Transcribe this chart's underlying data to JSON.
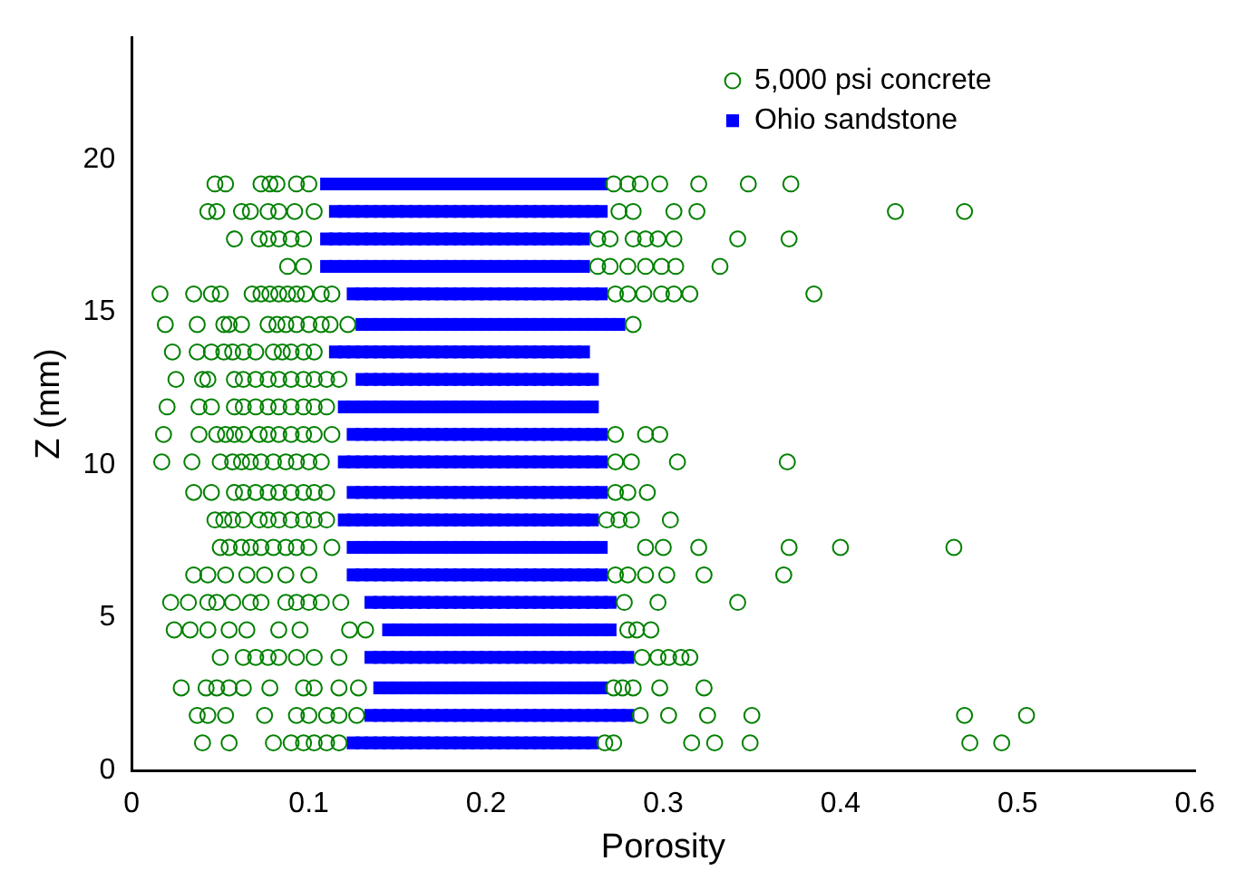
{
  "chart_data": {
    "type": "scatter",
    "xlabel": "Porosity",
    "ylabel": "Z (mm)",
    "xlim": [
      0,
      0.6
    ],
    "xticks": [
      0,
      0.1,
      0.2,
      0.3,
      0.4,
      0.5,
      0.6
    ],
    "ylim": [
      0,
      24
    ],
    "yticks": [
      0,
      5,
      10,
      15,
      20
    ],
    "legend": "top right",
    "series": [
      {
        "name": "5,000 psi concrete",
        "color": "#008000",
        "marker": "circle",
        "x": [
          0.047,
          0.053,
          0.073,
          0.078,
          0.082,
          0.093,
          0.1,
          0.272,
          0.28,
          0.287,
          0.298,
          0.32,
          0.348,
          0.372,
          0.043,
          0.048,
          0.062,
          0.067,
          0.077,
          0.083,
          0.092,
          0.103,
          0.275,
          0.283,
          0.306,
          0.319,
          0.431,
          0.47,
          0.058,
          0.072,
          0.077,
          0.083,
          0.09,
          0.097,
          0.263,
          0.27,
          0.283,
          0.29,
          0.297,
          0.306,
          0.342,
          0.371,
          0.088,
          0.097,
          0.263,
          0.27,
          0.28,
          0.29,
          0.299,
          0.307,
          0.332,
          0.016,
          0.035,
          0.045,
          0.05,
          0.068,
          0.073,
          0.078,
          0.083,
          0.088,
          0.093,
          0.098,
          0.107,
          0.113,
          0.273,
          0.28,
          0.289,
          0.299,
          0.306,
          0.315,
          0.385,
          0.019,
          0.037,
          0.052,
          0.055,
          0.062,
          0.077,
          0.082,
          0.087,
          0.093,
          0.1,
          0.107,
          0.112,
          0.122,
          0.283,
          0.023,
          0.037,
          0.045,
          0.052,
          0.057,
          0.063,
          0.07,
          0.08,
          0.085,
          0.09,
          0.097,
          0.103,
          0.025,
          0.04,
          0.043,
          0.058,
          0.063,
          0.07,
          0.077,
          0.083,
          0.09,
          0.097,
          0.103,
          0.11,
          0.117,
          0.02,
          0.038,
          0.045,
          0.058,
          0.063,
          0.07,
          0.077,
          0.083,
          0.09,
          0.097,
          0.103,
          0.11,
          0.018,
          0.038,
          0.048,
          0.053,
          0.058,
          0.063,
          0.072,
          0.077,
          0.083,
          0.09,
          0.097,
          0.103,
          0.113,
          0.273,
          0.29,
          0.298,
          0.017,
          0.034,
          0.05,
          0.057,
          0.062,
          0.067,
          0.073,
          0.08,
          0.087,
          0.093,
          0.1,
          0.107,
          0.273,
          0.282,
          0.308,
          0.37,
          0.035,
          0.045,
          0.058,
          0.063,
          0.07,
          0.077,
          0.083,
          0.09,
          0.097,
          0.103,
          0.11,
          0.273,
          0.28,
          0.291,
          0.047,
          0.052,
          0.057,
          0.063,
          0.072,
          0.077,
          0.083,
          0.09,
          0.097,
          0.103,
          0.11,
          0.268,
          0.275,
          0.282,
          0.304,
          0.05,
          0.055,
          0.062,
          0.067,
          0.073,
          0.08,
          0.087,
          0.093,
          0.1,
          0.113,
          0.29,
          0.3,
          0.32,
          0.371,
          0.4,
          0.464,
          0.035,
          0.043,
          0.053,
          0.065,
          0.075,
          0.087,
          0.1,
          0.273,
          0.28,
          0.29,
          0.302,
          0.323,
          0.368,
          0.022,
          0.032,
          0.043,
          0.048,
          0.057,
          0.067,
          0.073,
          0.087,
          0.093,
          0.1,
          0.107,
          0.118,
          0.278,
          0.297,
          0.342,
          0.024,
          0.033,
          0.043,
          0.055,
          0.065,
          0.083,
          0.095,
          0.123,
          0.132,
          0.28,
          0.285,
          0.293,
          0.05,
          0.063,
          0.07,
          0.077,
          0.083,
          0.093,
          0.103,
          0.117,
          0.288,
          0.297,
          0.303,
          0.31,
          0.315,
          0.028,
          0.042,
          0.048,
          0.055,
          0.063,
          0.078,
          0.097,
          0.103,
          0.117,
          0.128,
          0.272,
          0.277,
          0.283,
          0.298,
          0.323,
          0.037,
          0.043,
          0.053,
          0.075,
          0.093,
          0.1,
          0.11,
          0.117,
          0.127,
          0.287,
          0.303,
          0.325,
          0.35,
          0.47,
          0.505,
          0.04,
          0.055,
          0.08,
          0.09,
          0.097,
          0.103,
          0.11,
          0.117,
          0.267,
          0.272,
          0.316,
          0.329,
          0.349,
          0.473,
          0.491
        ],
        "values": [
          19.2,
          19.2,
          19.2,
          19.2,
          19.2,
          19.2,
          19.2,
          19.2,
          19.2,
          19.2,
          19.2,
          19.2,
          19.2,
          19.2,
          18.3,
          18.3,
          18.3,
          18.3,
          18.3,
          18.3,
          18.3,
          18.3,
          18.3,
          18.3,
          18.3,
          18.3,
          18.3,
          18.3,
          17.4,
          17.4,
          17.4,
          17.4,
          17.4,
          17.4,
          17.4,
          17.4,
          17.4,
          17.4,
          17.4,
          17.4,
          17.4,
          17.4,
          16.5,
          16.5,
          16.5,
          16.5,
          16.5,
          16.5,
          16.5,
          16.5,
          16.5,
          15.6,
          15.6,
          15.6,
          15.6,
          15.6,
          15.6,
          15.6,
          15.6,
          15.6,
          15.6,
          15.6,
          15.6,
          15.6,
          15.6,
          15.6,
          15.6,
          15.6,
          15.6,
          15.6,
          15.6,
          14.6,
          14.6,
          14.6,
          14.6,
          14.6,
          14.6,
          14.6,
          14.6,
          14.6,
          14.6,
          14.6,
          14.6,
          14.6,
          14.6,
          13.7,
          13.7,
          13.7,
          13.7,
          13.7,
          13.7,
          13.7,
          13.7,
          13.7,
          13.7,
          13.7,
          13.7,
          12.8,
          12.8,
          12.8,
          12.8,
          12.8,
          12.8,
          12.8,
          12.8,
          12.8,
          12.8,
          12.8,
          12.8,
          12.8,
          11.9,
          11.9,
          11.9,
          11.9,
          11.9,
          11.9,
          11.9,
          11.9,
          11.9,
          11.9,
          11.9,
          11.9,
          11,
          11,
          11,
          11,
          11,
          11,
          11,
          11,
          11,
          11,
          11,
          11,
          11,
          11,
          11,
          11,
          10.1,
          10.1,
          10.1,
          10.1,
          10.1,
          10.1,
          10.1,
          10.1,
          10.1,
          10.1,
          10.1,
          10.1,
          10.1,
          10.1,
          10.1,
          10.1,
          9.1,
          9.1,
          9.1,
          9.1,
          9.1,
          9.1,
          9.1,
          9.1,
          9.1,
          9.1,
          9.1,
          9.1,
          9.1,
          9.1,
          8.2,
          8.2,
          8.2,
          8.2,
          8.2,
          8.2,
          8.2,
          8.2,
          8.2,
          8.2,
          8.2,
          8.2,
          8.2,
          8.2,
          8.2,
          7.3,
          7.3,
          7.3,
          7.3,
          7.3,
          7.3,
          7.3,
          7.3,
          7.3,
          7.3,
          7.3,
          7.3,
          7.3,
          7.3,
          7.3,
          7.3,
          6.4,
          6.4,
          6.4,
          6.4,
          6.4,
          6.4,
          6.4,
          6.4,
          6.4,
          6.4,
          6.4,
          6.4,
          6.4,
          5.5,
          5.5,
          5.5,
          5.5,
          5.5,
          5.5,
          5.5,
          5.5,
          5.5,
          5.5,
          5.5,
          5.5,
          5.5,
          5.5,
          5.5,
          4.6,
          4.6,
          4.6,
          4.6,
          4.6,
          4.6,
          4.6,
          4.6,
          4.6,
          4.6,
          4.6,
          4.6,
          3.7,
          3.7,
          3.7,
          3.7,
          3.7,
          3.7,
          3.7,
          3.7,
          3.7,
          3.7,
          3.7,
          3.7,
          3.7,
          2.7,
          2.7,
          2.7,
          2.7,
          2.7,
          2.7,
          2.7,
          2.7,
          2.7,
          2.7,
          2.7,
          2.7,
          2.7,
          2.7,
          2.7,
          1.8,
          1.8,
          1.8,
          1.8,
          1.8,
          1.8,
          1.8,
          1.8,
          1.8,
          1.8,
          1.8,
          1.8,
          1.8,
          1.8,
          1.8,
          0.9,
          0.9,
          0.9,
          0.9,
          0.9,
          0.9,
          0.9,
          0.9,
          0.9,
          0.9,
          0.9,
          0.9,
          0.9,
          0.9,
          0.9
        ]
      },
      {
        "name": "Ohio sandstone",
        "color": "#0000ff",
        "marker": "square",
        "x": [
          0.11,
          0.115,
          0.12,
          0.125,
          0.13,
          0.135,
          0.14,
          0.145,
          0.15,
          0.155,
          0.16,
          0.165,
          0.17,
          0.175,
          0.18,
          0.185,
          0.19,
          0.195,
          0.2,
          0.205,
          0.21,
          0.215,
          0.22,
          0.225,
          0.23,
          0.235,
          0.24,
          0.245,
          0.25,
          0.255,
          0.26,
          0.265,
          0.115,
          0.12,
          0.125,
          0.13,
          0.135,
          0.14,
          0.145,
          0.15,
          0.155,
          0.16,
          0.165,
          0.17,
          0.175,
          0.18,
          0.185,
          0.19,
          0.195,
          0.2,
          0.205,
          0.21,
          0.215,
          0.22,
          0.225,
          0.23,
          0.235,
          0.24,
          0.245,
          0.25,
          0.255,
          0.26,
          0.265,
          0.11,
          0.115,
          0.12,
          0.125,
          0.13,
          0.135,
          0.14,
          0.145,
          0.15,
          0.155,
          0.16,
          0.165,
          0.17,
          0.175,
          0.18,
          0.185,
          0.19,
          0.195,
          0.2,
          0.205,
          0.21,
          0.215,
          0.22,
          0.225,
          0.23,
          0.235,
          0.24,
          0.245,
          0.25,
          0.255,
          0.11,
          0.115,
          0.12,
          0.125,
          0.13,
          0.135,
          0.14,
          0.145,
          0.15,
          0.155,
          0.16,
          0.165,
          0.17,
          0.175,
          0.18,
          0.185,
          0.19,
          0.195,
          0.2,
          0.205,
          0.21,
          0.215,
          0.22,
          0.225,
          0.23,
          0.235,
          0.24,
          0.245,
          0.25,
          0.255,
          0.125,
          0.13,
          0.135,
          0.14,
          0.145,
          0.15,
          0.155,
          0.16,
          0.165,
          0.17,
          0.175,
          0.18,
          0.185,
          0.19,
          0.195,
          0.2,
          0.205,
          0.21,
          0.215,
          0.22,
          0.225,
          0.23,
          0.235,
          0.24,
          0.245,
          0.25,
          0.255,
          0.26,
          0.265,
          0.13,
          0.135,
          0.14,
          0.145,
          0.15,
          0.155,
          0.16,
          0.165,
          0.17,
          0.175,
          0.18,
          0.185,
          0.19,
          0.195,
          0.2,
          0.205,
          0.21,
          0.215,
          0.22,
          0.225,
          0.23,
          0.235,
          0.24,
          0.245,
          0.25,
          0.255,
          0.26,
          0.265,
          0.27,
          0.275,
          0.115,
          0.12,
          0.125,
          0.13,
          0.135,
          0.14,
          0.145,
          0.15,
          0.155,
          0.16,
          0.165,
          0.17,
          0.175,
          0.18,
          0.185,
          0.19,
          0.195,
          0.2,
          0.205,
          0.21,
          0.215,
          0.22,
          0.225,
          0.23,
          0.235,
          0.24,
          0.245,
          0.25,
          0.255,
          0.13,
          0.135,
          0.14,
          0.145,
          0.15,
          0.155,
          0.16,
          0.165,
          0.17,
          0.175,
          0.18,
          0.185,
          0.19,
          0.195,
          0.2,
          0.205,
          0.21,
          0.215,
          0.22,
          0.225,
          0.23,
          0.235,
          0.24,
          0.245,
          0.25,
          0.255,
          0.26,
          0.12,
          0.125,
          0.13,
          0.135,
          0.14,
          0.145,
          0.15,
          0.155,
          0.16,
          0.165,
          0.17,
          0.175,
          0.18,
          0.185,
          0.19,
          0.195,
          0.2,
          0.205,
          0.21,
          0.215,
          0.22,
          0.225,
          0.23,
          0.235,
          0.24,
          0.245,
          0.25,
          0.255,
          0.26,
          0.125,
          0.13,
          0.135,
          0.14,
          0.145,
          0.15,
          0.155,
          0.16,
          0.165,
          0.17,
          0.175,
          0.18,
          0.185,
          0.19,
          0.195,
          0.2,
          0.205,
          0.21,
          0.215,
          0.22,
          0.225,
          0.23,
          0.235,
          0.24,
          0.245,
          0.25,
          0.255,
          0.26,
          0.265,
          0.12,
          0.125,
          0.13,
          0.135,
          0.14,
          0.145,
          0.15,
          0.155,
          0.16,
          0.165,
          0.17,
          0.175,
          0.18,
          0.185,
          0.19,
          0.195,
          0.2,
          0.205,
          0.21,
          0.215,
          0.22,
          0.225,
          0.23,
          0.235,
          0.24,
          0.245,
          0.25,
          0.255,
          0.26,
          0.265,
          0.125,
          0.13,
          0.135,
          0.14,
          0.145,
          0.15,
          0.155,
          0.16,
          0.165,
          0.17,
          0.175,
          0.18,
          0.185,
          0.19,
          0.195,
          0.2,
          0.205,
          0.21,
          0.215,
          0.22,
          0.225,
          0.23,
          0.235,
          0.24,
          0.245,
          0.25,
          0.255,
          0.26,
          0.265,
          0.12,
          0.125,
          0.13,
          0.135,
          0.14,
          0.145,
          0.15,
          0.155,
          0.16,
          0.165,
          0.17,
          0.175,
          0.18,
          0.185,
          0.19,
          0.195,
          0.2,
          0.205,
          0.21,
          0.215,
          0.22,
          0.225,
          0.23,
          0.235,
          0.24,
          0.245,
          0.25,
          0.255,
          0.26,
          0.125,
          0.13,
          0.135,
          0.14,
          0.145,
          0.15,
          0.155,
          0.16,
          0.165,
          0.17,
          0.175,
          0.18,
          0.185,
          0.19,
          0.195,
          0.2,
          0.205,
          0.21,
          0.215,
          0.22,
          0.225,
          0.23,
          0.235,
          0.24,
          0.245,
          0.25,
          0.255,
          0.26,
          0.265,
          0.125,
          0.13,
          0.135,
          0.14,
          0.145,
          0.15,
          0.155,
          0.16,
          0.165,
          0.17,
          0.175,
          0.18,
          0.185,
          0.19,
          0.195,
          0.2,
          0.205,
          0.21,
          0.215,
          0.22,
          0.225,
          0.23,
          0.235,
          0.24,
          0.245,
          0.25,
          0.255,
          0.26,
          0.265,
          0.135,
          0.14,
          0.145,
          0.15,
          0.155,
          0.16,
          0.165,
          0.17,
          0.175,
          0.18,
          0.185,
          0.19,
          0.195,
          0.2,
          0.205,
          0.21,
          0.215,
          0.22,
          0.225,
          0.23,
          0.235,
          0.24,
          0.245,
          0.25,
          0.255,
          0.26,
          0.265,
          0.27,
          0.145,
          0.15,
          0.155,
          0.16,
          0.165,
          0.17,
          0.175,
          0.18,
          0.185,
          0.19,
          0.195,
          0.2,
          0.205,
          0.21,
          0.215,
          0.22,
          0.225,
          0.23,
          0.235,
          0.24,
          0.245,
          0.25,
          0.255,
          0.26,
          0.265,
          0.27,
          0.135,
          0.14,
          0.145,
          0.15,
          0.155,
          0.16,
          0.165,
          0.17,
          0.175,
          0.18,
          0.185,
          0.19,
          0.195,
          0.2,
          0.205,
          0.21,
          0.215,
          0.22,
          0.225,
          0.23,
          0.235,
          0.24,
          0.245,
          0.25,
          0.255,
          0.26,
          0.265,
          0.27,
          0.275,
          0.28,
          0.14,
          0.145,
          0.15,
          0.155,
          0.16,
          0.165,
          0.17,
          0.175,
          0.18,
          0.185,
          0.19,
          0.195,
          0.2,
          0.205,
          0.21,
          0.215,
          0.22,
          0.225,
          0.23,
          0.235,
          0.24,
          0.245,
          0.25,
          0.255,
          0.26,
          0.265,
          0.135,
          0.14,
          0.145,
          0.15,
          0.155,
          0.16,
          0.165,
          0.17,
          0.175,
          0.18,
          0.185,
          0.19,
          0.195,
          0.2,
          0.205,
          0.21,
          0.215,
          0.22,
          0.225,
          0.23,
          0.235,
          0.24,
          0.245,
          0.25,
          0.255,
          0.26,
          0.265,
          0.27,
          0.275,
          0.28,
          0.125,
          0.13,
          0.135,
          0.14,
          0.145,
          0.15,
          0.155,
          0.16,
          0.165,
          0.17,
          0.175,
          0.18,
          0.185,
          0.19,
          0.195,
          0.2,
          0.205,
          0.21,
          0.215,
          0.22,
          0.225,
          0.23,
          0.235,
          0.24,
          0.245,
          0.25,
          0.255,
          0.26
        ],
        "values": [
          19.2,
          19.2,
          19.2,
          19.2,
          19.2,
          19.2,
          19.2,
          19.2,
          19.2,
          19.2,
          19.2,
          19.2,
          19.2,
          19.2,
          19.2,
          19.2,
          19.2,
          19.2,
          19.2,
          19.2,
          19.2,
          19.2,
          19.2,
          19.2,
          19.2,
          19.2,
          19.2,
          19.2,
          19.2,
          19.2,
          19.2,
          19.2,
          18.3,
          18.3,
          18.3,
          18.3,
          18.3,
          18.3,
          18.3,
          18.3,
          18.3,
          18.3,
          18.3,
          18.3,
          18.3,
          18.3,
          18.3,
          18.3,
          18.3,
          18.3,
          18.3,
          18.3,
          18.3,
          18.3,
          18.3,
          18.3,
          18.3,
          18.3,
          18.3,
          18.3,
          18.3,
          18.3,
          18.3,
          17.4,
          17.4,
          17.4,
          17.4,
          17.4,
          17.4,
          17.4,
          17.4,
          17.4,
          17.4,
          17.4,
          17.4,
          17.4,
          17.4,
          17.4,
          17.4,
          17.4,
          17.4,
          17.4,
          17.4,
          17.4,
          17.4,
          17.4,
          17.4,
          17.4,
          17.4,
          17.4,
          17.4,
          17.4,
          17.4,
          16.5,
          16.5,
          16.5,
          16.5,
          16.5,
          16.5,
          16.5,
          16.5,
          16.5,
          16.5,
          16.5,
          16.5,
          16.5,
          16.5,
          16.5,
          16.5,
          16.5,
          16.5,
          16.5,
          16.5,
          16.5,
          16.5,
          16.5,
          16.5,
          16.5,
          16.5,
          16.5,
          16.5,
          16.5,
          16.5,
          15.6,
          15.6,
          15.6,
          15.6,
          15.6,
          15.6,
          15.6,
          15.6,
          15.6,
          15.6,
          15.6,
          15.6,
          15.6,
          15.6,
          15.6,
          15.6,
          15.6,
          15.6,
          15.6,
          15.6,
          15.6,
          15.6,
          15.6,
          15.6,
          15.6,
          15.6,
          15.6,
          15.6,
          15.6,
          14.6,
          14.6,
          14.6,
          14.6,
          14.6,
          14.6,
          14.6,
          14.6,
          14.6,
          14.6,
          14.6,
          14.6,
          14.6,
          14.6,
          14.6,
          14.6,
          14.6,
          14.6,
          14.6,
          14.6,
          14.6,
          14.6,
          14.6,
          14.6,
          14.6,
          14.6,
          14.6,
          14.6,
          14.6,
          14.6,
          13.7,
          13.7,
          13.7,
          13.7,
          13.7,
          13.7,
          13.7,
          13.7,
          13.7,
          13.7,
          13.7,
          13.7,
          13.7,
          13.7,
          13.7,
          13.7,
          13.7,
          13.7,
          13.7,
          13.7,
          13.7,
          13.7,
          13.7,
          13.7,
          13.7,
          13.7,
          13.7,
          13.7,
          13.7,
          12.8,
          12.8,
          12.8,
          12.8,
          12.8,
          12.8,
          12.8,
          12.8,
          12.8,
          12.8,
          12.8,
          12.8,
          12.8,
          12.8,
          12.8,
          12.8,
          12.8,
          12.8,
          12.8,
          12.8,
          12.8,
          12.8,
          12.8,
          12.8,
          12.8,
          12.8,
          12.8,
          11.9,
          11.9,
          11.9,
          11.9,
          11.9,
          11.9,
          11.9,
          11.9,
          11.9,
          11.9,
          11.9,
          11.9,
          11.9,
          11.9,
          11.9,
          11.9,
          11.9,
          11.9,
          11.9,
          11.9,
          11.9,
          11.9,
          11.9,
          11.9,
          11.9,
          11.9,
          11.9,
          11.9,
          11.9,
          11,
          11,
          11,
          11,
          11,
          11,
          11,
          11,
          11,
          11,
          11,
          11,
          11,
          11,
          11,
          11,
          11,
          11,
          11,
          11,
          11,
          11,
          11,
          11,
          11,
          11,
          11,
          11,
          11,
          10.1,
          10.1,
          10.1,
          10.1,
          10.1,
          10.1,
          10.1,
          10.1,
          10.1,
          10.1,
          10.1,
          10.1,
          10.1,
          10.1,
          10.1,
          10.1,
          10.1,
          10.1,
          10.1,
          10.1,
          10.1,
          10.1,
          10.1,
          10.1,
          10.1,
          10.1,
          10.1,
          10.1,
          10.1,
          10.1,
          9.1,
          9.1,
          9.1,
          9.1,
          9.1,
          9.1,
          9.1,
          9.1,
          9.1,
          9.1,
          9.1,
          9.1,
          9.1,
          9.1,
          9.1,
          9.1,
          9.1,
          9.1,
          9.1,
          9.1,
          9.1,
          9.1,
          9.1,
          9.1,
          9.1,
          9.1,
          9.1,
          9.1,
          9.1,
          8.2,
          8.2,
          8.2,
          8.2,
          8.2,
          8.2,
          8.2,
          8.2,
          8.2,
          8.2,
          8.2,
          8.2,
          8.2,
          8.2,
          8.2,
          8.2,
          8.2,
          8.2,
          8.2,
          8.2,
          8.2,
          8.2,
          8.2,
          8.2,
          8.2,
          8.2,
          8.2,
          8.2,
          8.2,
          7.3,
          7.3,
          7.3,
          7.3,
          7.3,
          7.3,
          7.3,
          7.3,
          7.3,
          7.3,
          7.3,
          7.3,
          7.3,
          7.3,
          7.3,
          7.3,
          7.3,
          7.3,
          7.3,
          7.3,
          7.3,
          7.3,
          7.3,
          7.3,
          7.3,
          7.3,
          7.3,
          7.3,
          7.3,
          6.4,
          6.4,
          6.4,
          6.4,
          6.4,
          6.4,
          6.4,
          6.4,
          6.4,
          6.4,
          6.4,
          6.4,
          6.4,
          6.4,
          6.4,
          6.4,
          6.4,
          6.4,
          6.4,
          6.4,
          6.4,
          6.4,
          6.4,
          6.4,
          6.4,
          6.4,
          6.4,
          6.4,
          6.4,
          5.5,
          5.5,
          5.5,
          5.5,
          5.5,
          5.5,
          5.5,
          5.5,
          5.5,
          5.5,
          5.5,
          5.5,
          5.5,
          5.5,
          5.5,
          5.5,
          5.5,
          5.5,
          5.5,
          5.5,
          5.5,
          5.5,
          5.5,
          5.5,
          5.5,
          5.5,
          5.5,
          5.5,
          4.6,
          4.6,
          4.6,
          4.6,
          4.6,
          4.6,
          4.6,
          4.6,
          4.6,
          4.6,
          4.6,
          4.6,
          4.6,
          4.6,
          4.6,
          4.6,
          4.6,
          4.6,
          4.6,
          4.6,
          4.6,
          4.6,
          4.6,
          4.6,
          4.6,
          4.6,
          3.7,
          3.7,
          3.7,
          3.7,
          3.7,
          3.7,
          3.7,
          3.7,
          3.7,
          3.7,
          3.7,
          3.7,
          3.7,
          3.7,
          3.7,
          3.7,
          3.7,
          3.7,
          3.7,
          3.7,
          3.7,
          3.7,
          3.7,
          3.7,
          3.7,
          3.7,
          3.7,
          3.7,
          3.7,
          3.7,
          2.7,
          2.7,
          2.7,
          2.7,
          2.7,
          2.7,
          2.7,
          2.7,
          2.7,
          2.7,
          2.7,
          2.7,
          2.7,
          2.7,
          2.7,
          2.7,
          2.7,
          2.7,
          2.7,
          2.7,
          2.7,
          2.7,
          2.7,
          2.7,
          2.7,
          2.7,
          1.8,
          1.8,
          1.8,
          1.8,
          1.8,
          1.8,
          1.8,
          1.8,
          1.8,
          1.8,
          1.8,
          1.8,
          1.8,
          1.8,
          1.8,
          1.8,
          1.8,
          1.8,
          1.8,
          1.8,
          1.8,
          1.8,
          1.8,
          1.8,
          1.8,
          1.8,
          1.8,
          1.8,
          1.8,
          1.8,
          0.9,
          0.9,
          0.9,
          0.9,
          0.9,
          0.9,
          0.9,
          0.9,
          0.9,
          0.9,
          0.9,
          0.9,
          0.9,
          0.9,
          0.9,
          0.9,
          0.9,
          0.9,
          0.9,
          0.9,
          0.9,
          0.9,
          0.9,
          0.9,
          0.9,
          0.9,
          0.9,
          0.9
        ]
      }
    ]
  }
}
